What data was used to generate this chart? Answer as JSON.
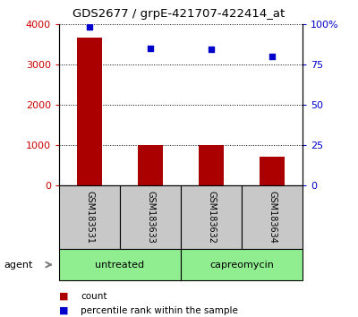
{
  "title": "GDS2677 / grpE-421707-422414_at",
  "samples": [
    "GSM183531",
    "GSM183633",
    "GSM183632",
    "GSM183634"
  ],
  "counts": [
    3650,
    1000,
    1000,
    700
  ],
  "percentiles": [
    98,
    85,
    84,
    80
  ],
  "groups": [
    {
      "label": "untreated",
      "color": "#90EE90"
    },
    {
      "label": "capreomycin",
      "color": "#90EE90"
    }
  ],
  "left_ylim": [
    0,
    4000
  ],
  "right_ylim": [
    0,
    100
  ],
  "left_yticks": [
    0,
    1000,
    2000,
    3000,
    4000
  ],
  "right_yticks": [
    0,
    25,
    50,
    75,
    100
  ],
  "right_yticklabels": [
    "0",
    "25",
    "50",
    "75",
    "100%"
  ],
  "bar_color": "#AA0000",
  "scatter_color": "#0000CC",
  "left_tick_color": "#CC0000",
  "right_tick_color": "#0000CC",
  "agent_label": "agent",
  "legend_count_label": "count",
  "legend_percentile_label": "percentile rank within the sample",
  "bar_width": 0.4,
  "sample_box_color": "#C8C8C8",
  "xlim": [
    -0.5,
    3.5
  ]
}
